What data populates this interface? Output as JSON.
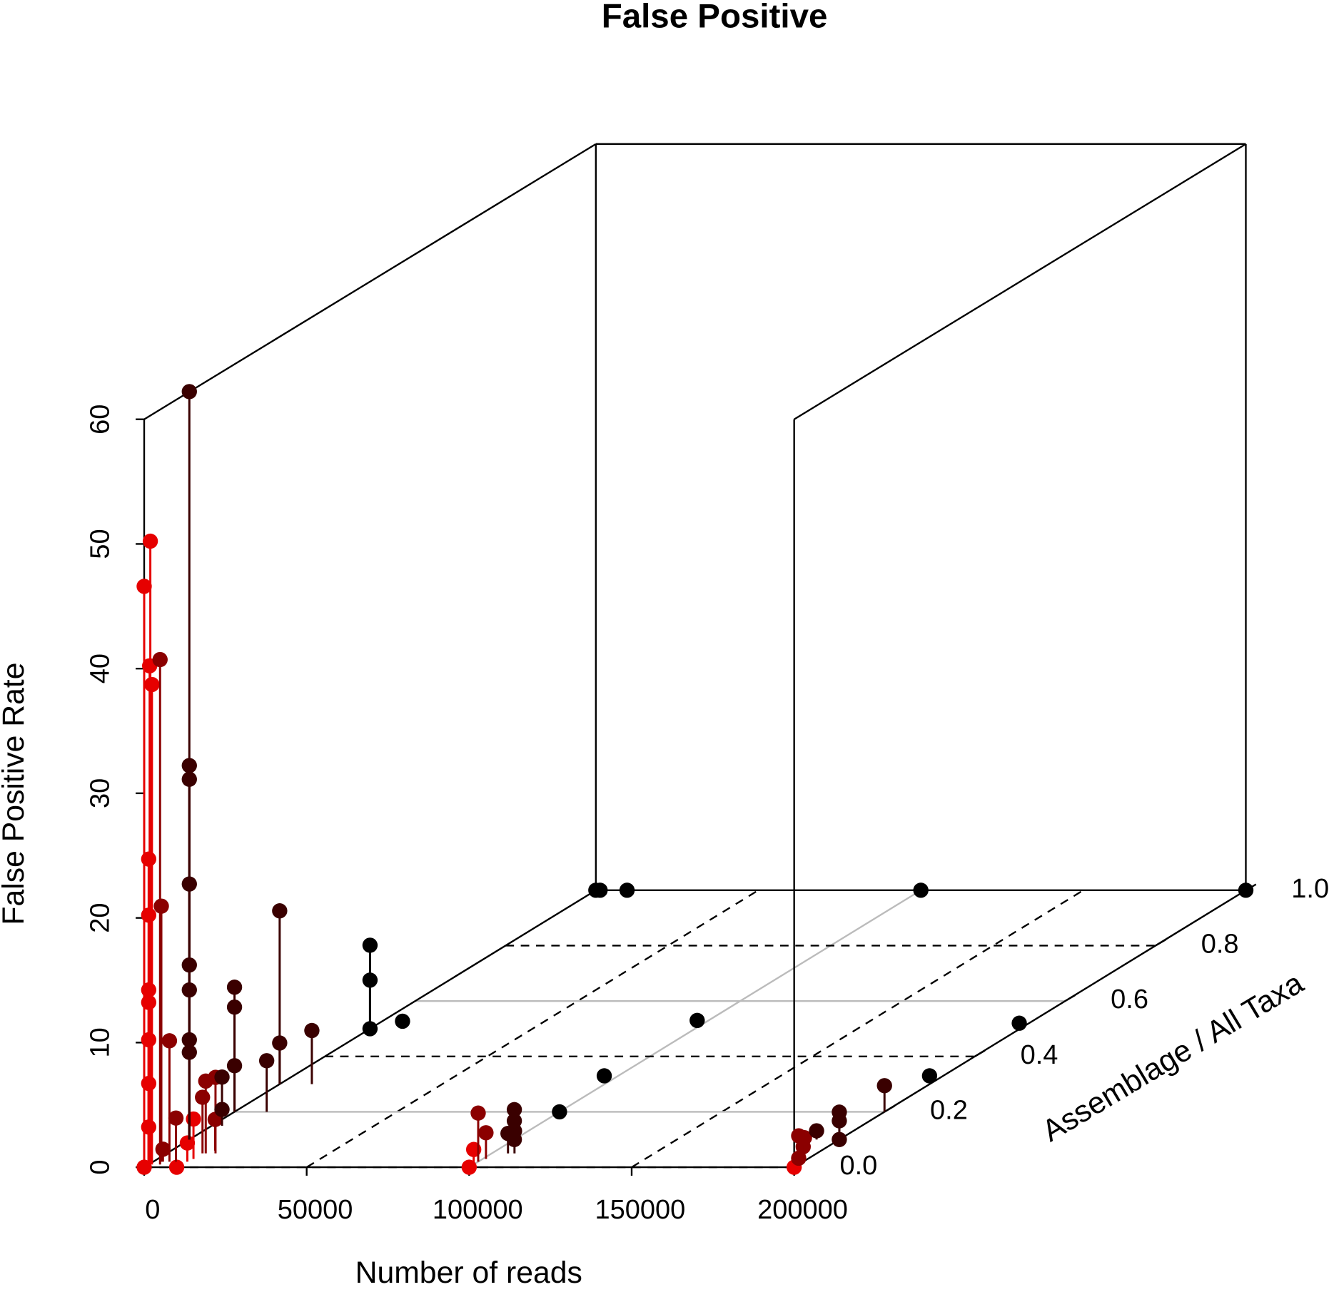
{
  "chart_data": {
    "type": "scatter3d",
    "title": "False Positive",
    "x_label": "Number of reads",
    "y_label": "Assemblage / All Taxa",
    "z_label": "False Positive Rate",
    "xlim": [
      0,
      200000
    ],
    "xticks": [
      0,
      50000,
      100000,
      150000,
      200000
    ],
    "ylim": [
      0,
      1
    ],
    "yticks": [
      {
        "value": 0,
        "label": "0.0"
      },
      {
        "value": 0.2,
        "label": "0.2"
      },
      {
        "value": 0.4,
        "label": "0.4"
      },
      {
        "value": 0.6,
        "label": "0.6"
      },
      {
        "value": 0.8,
        "label": "0.8"
      },
      {
        "value": 1,
        "label": "1.0"
      }
    ],
    "zlim": [
      0,
      60
    ],
    "zticks": [
      0,
      10,
      20,
      30,
      40,
      50,
      60
    ],
    "grid": true,
    "stems": true,
    "series": [
      {
        "color": "#e60000",
        "x": [
          500,
          0,
          300,
          1000,
          0,
          0,
          0,
          0,
          0,
          0,
          0,
          0,
          10000,
          10500,
          11000,
          100000,
          100000,
          200000
        ],
        "y": [
          0.01,
          0,
          0.01,
          0.01,
          0.01,
          0.01,
          0.01,
          0.01,
          0.01,
          0.01,
          0.01,
          0,
          0,
          0.02,
          0.03,
          0,
          0.01,
          0
        ],
        "values": [
          50,
          46.6,
          40,
          38.5,
          24.5,
          20,
          14,
          13,
          10,
          6.5,
          3,
          0,
          0,
          1.5,
          3.2,
          0,
          1.2,
          0
        ]
      },
      {
        "color": "#8b0000",
        "x": [
          3500,
          2500,
          5000,
          7000,
          3000,
          11000,
          12000,
          15000,
          13500,
          100000,
          101000,
          200000,
          200000,
          200000,
          199000
        ],
        "y": [
          0.01,
          0.02,
          0.02,
          0.02,
          0.02,
          0.05,
          0.05,
          0.05,
          0.06,
          0.02,
          0.03,
          0.01,
          0.02,
          0.01,
          0.03
        ],
        "values": [
          40.5,
          20.5,
          9.7,
          3.5,
          1,
          4.5,
          5.8,
          6.1,
          2.5,
          3.9,
          2.1,
          2.3,
          1.2,
          0.5,
          1.7
        ]
      },
      {
        "color": "#3a0000",
        "x": [
          0,
          0,
          0,
          0,
          0,
          0,
          0,
          0,
          3100,
          3100,
          0,
          0,
          0,
          9900,
          0,
          0,
          9900,
          105000,
          107000,
          100000,
          100000,
          100000,
          200000,
          200000,
          200000,
          193000,
          200000
        ],
        "y": [
          0.1,
          0.1,
          0.1,
          0.1,
          0.1,
          0.1,
          0.1,
          0.1,
          0.15,
          0.15,
          0.2,
          0.2,
          0.2,
          0.2,
          0.3,
          0.3,
          0.3,
          0.05,
          0.05,
          0.1,
          0.1,
          0.1,
          0.2,
          0.1,
          0.1,
          0.1,
          0.1
        ],
        "values": [
          60,
          30,
          28.9,
          20.5,
          14,
          12,
          8,
          7,
          3.9,
          1.3,
          10,
          8.4,
          3.7,
          4.1,
          13.9,
          3.3,
          4.3,
          1.6,
          1.8,
          2.4,
          1.5,
          0,
          2.1,
          2.2,
          1.5,
          0.7,
          0
        ]
      },
      {
        "color": "#000000",
        "x": [
          0,
          0,
          0,
          10000,
          0,
          1300,
          9600,
          100000,
          200000,
          96500,
          95700,
          197000,
          195800,
          100000
        ],
        "y": [
          0.5,
          0.5,
          0.5,
          0.5,
          1,
          1,
          1,
          1,
          1,
          0.53,
          0.33,
          0.52,
          0.33,
          0.2
        ],
        "values": [
          6.7,
          3.9,
          0,
          0.6,
          0,
          0,
          0,
          0,
          0,
          0,
          0,
          0,
          0,
          0
        ]
      }
    ]
  }
}
